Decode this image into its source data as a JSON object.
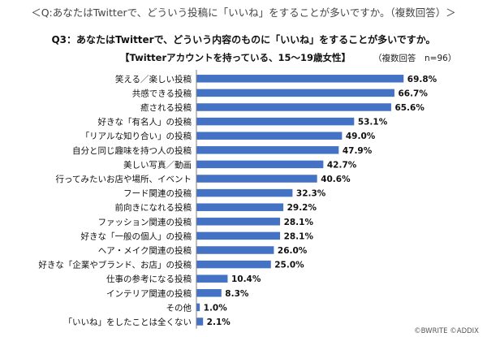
{
  "page_title": "＜Q:あなたはTwitterで、どういう投稿に「いいね」をすることが多いですか。（複数回答）＞",
  "question_title": "Q3：あなたはTwitterで、どういう内容のものに「いいね」をすることが多いですか。",
  "subtitle": "【Twitterアカウントを持っている、15～19歳女性】",
  "note": "（複数回答　n=96）",
  "credit": "©BWRITE ©ADDIX",
  "colors": {
    "bar": "#4472c4",
    "axis": "#7f7f7f"
  },
  "chart_data": {
    "type": "bar",
    "orientation": "horizontal",
    "unit": "%",
    "xlim": [
      0,
      100
    ],
    "grid": false,
    "categories": [
      "笑える／楽しい投稿",
      "共感できる投稿",
      "癒される投稿",
      "好きな「有名人」の投稿",
      "「リアルな知り合い」の投稿",
      "自分と同じ趣味を持つ人の投稿",
      "美しい写真／動画",
      "行ってみたいお店や場所、イベント",
      "フード関連の投稿",
      "前向きになれる投稿",
      "ファッション関連の投稿",
      "好きな「一般の個人」の投稿",
      "ヘア・メイク関連の投稿",
      "好きな「企業やブランド、お店」の投稿",
      "仕事の参考になる投稿",
      "インテリア関連の投稿",
      "その他",
      "「いいね」をしたことは全くない"
    ],
    "values": [
      69.8,
      66.7,
      65.6,
      53.1,
      49.0,
      47.9,
      42.7,
      40.6,
      32.3,
      29.2,
      28.1,
      28.1,
      26.0,
      25.0,
      10.4,
      8.3,
      1.0,
      2.1
    ],
    "value_labels": [
      "69.8%",
      "66.7%",
      "65.6%",
      "53.1%",
      "49.0%",
      "47.9%",
      "42.7%",
      "40.6%",
      "32.3%",
      "29.2%",
      "28.1%",
      "28.1%",
      "26.0%",
      "25.0%",
      "10.4%",
      "8.3%",
      "1.0%",
      "2.1%"
    ]
  }
}
